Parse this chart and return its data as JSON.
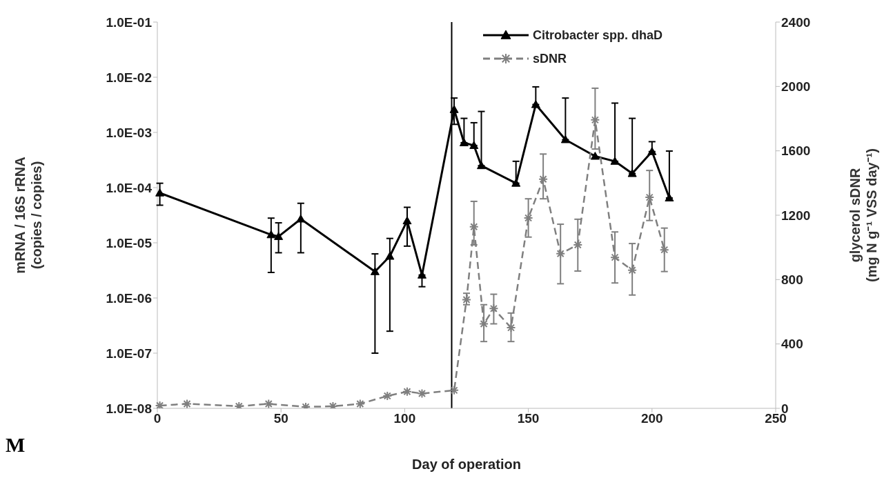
{
  "chart_data": {
    "type": "line",
    "xlabel": "Day of operation",
    "ylabel": "mRNA / 16S rRNA\n(copies / copies)",
    "y2label": "glycerol sDNR\n(mg N g⁻¹ VSS day⁻¹)",
    "log": "y",
    "xlim": [
      0,
      250
    ],
    "xticks": [
      0,
      50,
      100,
      150,
      200,
      250
    ],
    "ylim": [
      1e-08,
      0.1
    ],
    "yticks": [
      {
        "value": 1e-08,
        "label": "1.0E-08"
      },
      {
        "value": 1e-07,
        "label": "1.0E-07"
      },
      {
        "value": 1e-06,
        "label": "1.0E-06"
      },
      {
        "value": 1e-05,
        "label": "1.0E-05"
      },
      {
        "value": 0.0001,
        "label": "1.0E-04"
      },
      {
        "value": 0.001,
        "label": "1.0E-03"
      },
      {
        "value": 0.01,
        "label": "1.0E-02"
      },
      {
        "value": 0.1,
        "label": "1.0E-01"
      }
    ],
    "y2lim": [
      0,
      2400
    ],
    "y2ticks": [
      0,
      400,
      800,
      1200,
      1600,
      2000,
      2400
    ],
    "grid": false,
    "legend": "top right",
    "ref_lines": [
      {
        "axis": "x",
        "value": 119,
        "color": "#000000"
      }
    ],
    "annotations": [
      "M"
    ],
    "series": [
      {
        "name": "Citrobacter spp. dhaD",
        "color": "#000000",
        "marker": "triangle",
        "line_style": "solid",
        "x": [
          1,
          46,
          49,
          58,
          88,
          94,
          101,
          107,
          120,
          124,
          128,
          131,
          145,
          153,
          165,
          177,
          185,
          192,
          200,
          207
        ],
        "values": [
          8e-05,
          1.4e-05,
          1.3e-05,
          2.7e-05,
          3e-06,
          5.7e-06,
          2.5e-05,
          2.6e-06,
          0.0026,
          0.00065,
          0.00058,
          0.00025,
          0.00012,
          0.0032,
          0.00074,
          0.00037,
          0.0003,
          0.00018,
          0.00045,
          6.5e-05
        ],
        "errors": [
          [
            4.8e-05,
            0.00012
          ],
          [
            2.9e-06,
            2.8e-05
          ],
          [
            6.6e-06,
            2.3e-05
          ],
          [
            6.6e-06,
            5.2e-05
          ],
          [
            1e-07,
            6.3e-06
          ],
          [
            2.5e-07,
            1.2e-05
          ],
          [
            8.7e-06,
            4.4e-05
          ],
          [
            1.6e-06,
            2.6e-06
          ],
          [
            0.0014,
            0.0042
          ],
          [
            0.00065,
            0.0018
          ],
          [
            0.00058,
            0.0015
          ],
          [
            0.00025,
            0.0024
          ],
          [
            0.00012,
            0.0003
          ],
          [
            0.0032,
            0.0067
          ],
          [
            0.00074,
            0.0042
          ],
          null,
          [
            0.0003,
            0.0034
          ],
          [
            0.00018,
            0.0018
          ],
          [
            0.00045,
            0.00068
          ],
          [
            6.5e-05,
            0.00046
          ]
        ]
      },
      {
        "name": "sDNR",
        "color": "#7f7f7f",
        "marker": "cross",
        "line_style": "dashed",
        "axis": "y2",
        "x": [
          1,
          12,
          33,
          45,
          60,
          71,
          82,
          93,
          101,
          107,
          120,
          125,
          128,
          132,
          136,
          143,
          150,
          156,
          163,
          170,
          177,
          185,
          192,
          199,
          205
        ],
        "values": [
          17,
          28,
          13,
          28,
          9,
          13,
          28,
          77,
          104,
          92,
          112,
          675,
          1128,
          525,
          620,
          501,
          1183,
          1424,
          961,
          1016,
          1792,
          938,
          858,
          1311,
          985
        ],
        "errors": [
          null,
          null,
          null,
          null,
          null,
          null,
          null,
          null,
          null,
          null,
          null,
          [
            644,
            715
          ],
          [
            1016,
            1286
          ],
          [
            415,
            644
          ],
          [
            525,
            709
          ],
          [
            415,
            592
          ],
          [
            1064,
            1302
          ],
          [
            1302,
            1580
          ],
          [
            774,
            1144
          ],
          [
            853,
            1175
          ],
          [
            1611,
            1989
          ],
          [
            779,
            1096
          ],
          [
            704,
            1024
          ],
          [
            1167,
            1478
          ],
          [
            850,
            1120
          ]
        ]
      }
    ]
  }
}
